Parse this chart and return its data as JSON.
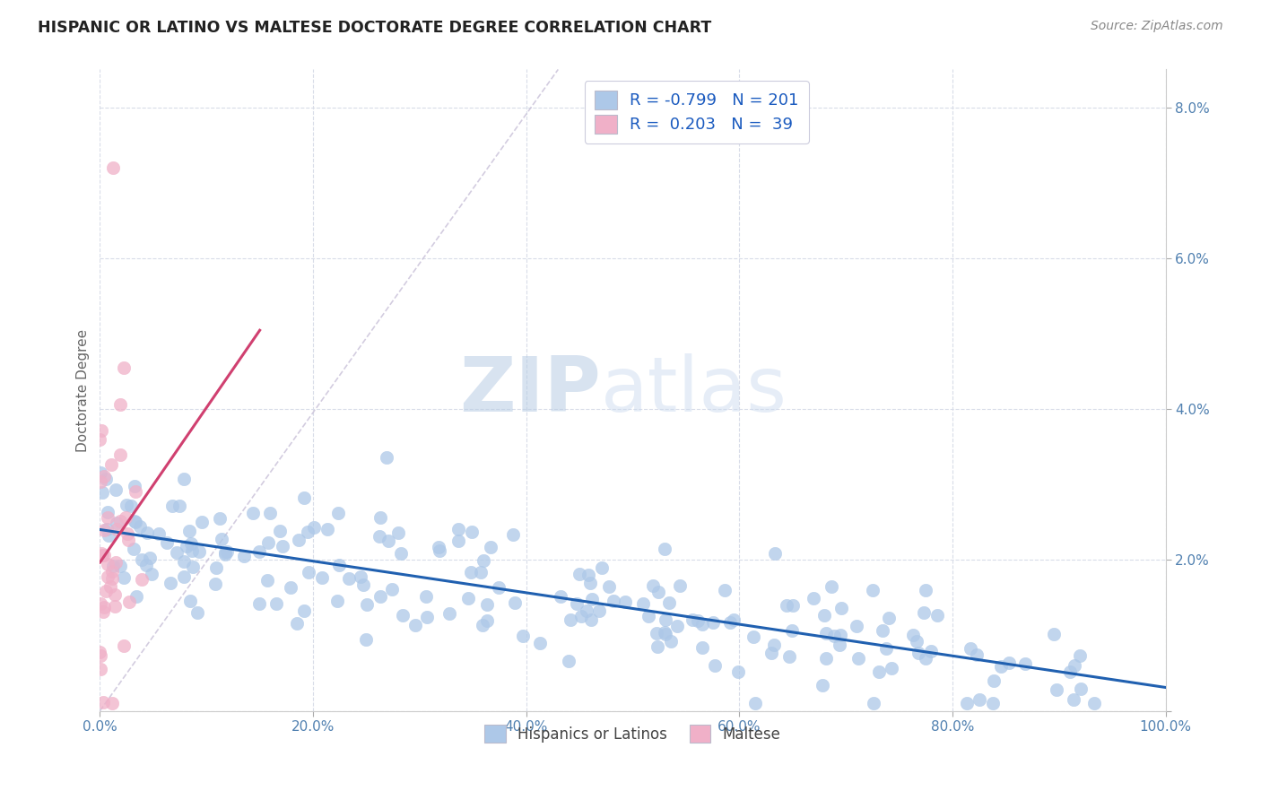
{
  "title": "HISPANIC OR LATINO VS MALTESE DOCTORATE DEGREE CORRELATION CHART",
  "source_text": "Source: ZipAtlas.com",
  "ylabel": "Doctorate Degree",
  "xlim": [
    0.0,
    1.0
  ],
  "ylim": [
    0.0,
    0.085
  ],
  "yticks": [
    0.0,
    0.02,
    0.04,
    0.06,
    0.08
  ],
  "ytick_labels_right": [
    "",
    "2.0%",
    "4.0%",
    "6.0%",
    "8.0%"
  ],
  "xticks": [
    0.0,
    0.2,
    0.4,
    0.6,
    0.8,
    1.0
  ],
  "xtick_labels": [
    "0.0%",
    "20.0%",
    "40.0%",
    "60.0%",
    "80.0%",
    "100.0%"
  ],
  "blue_color": "#adc8e8",
  "blue_line_color": "#2060b0",
  "pink_color": "#f0b0c8",
  "pink_line_color": "#d04070",
  "diag_line_color": "#c8c0d8",
  "legend_blue_R": "-0.799",
  "legend_blue_N": "201",
  "legend_pink_R": "0.203",
  "legend_pink_N": "39",
  "watermark_zip": "ZIP",
  "watermark_atlas": "atlas",
  "background_color": "#ffffff",
  "grid_color": "#d8dce8",
  "tick_color": "#5080b0",
  "blue_n": 201,
  "pink_n": 39
}
